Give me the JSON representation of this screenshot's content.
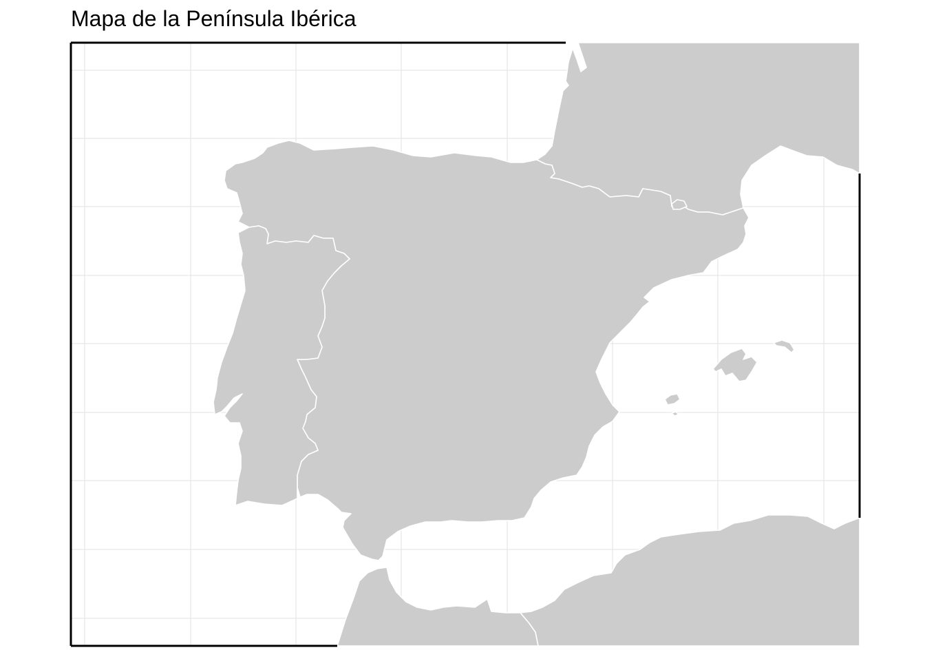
{
  "title": "Mapa de la Península Ibérica",
  "colors": {
    "land": "#cccccc",
    "border": "#ffffff",
    "background": "#ffffff",
    "grid": "#e6e6e6",
    "frame": "#000000"
  },
  "grid": true,
  "regions": [
    "Spain",
    "Portugal",
    "France",
    "Andorra",
    "Morocco",
    "Algeria",
    "Mallorca",
    "Menorca",
    "Ibiza",
    "Formentera"
  ]
}
